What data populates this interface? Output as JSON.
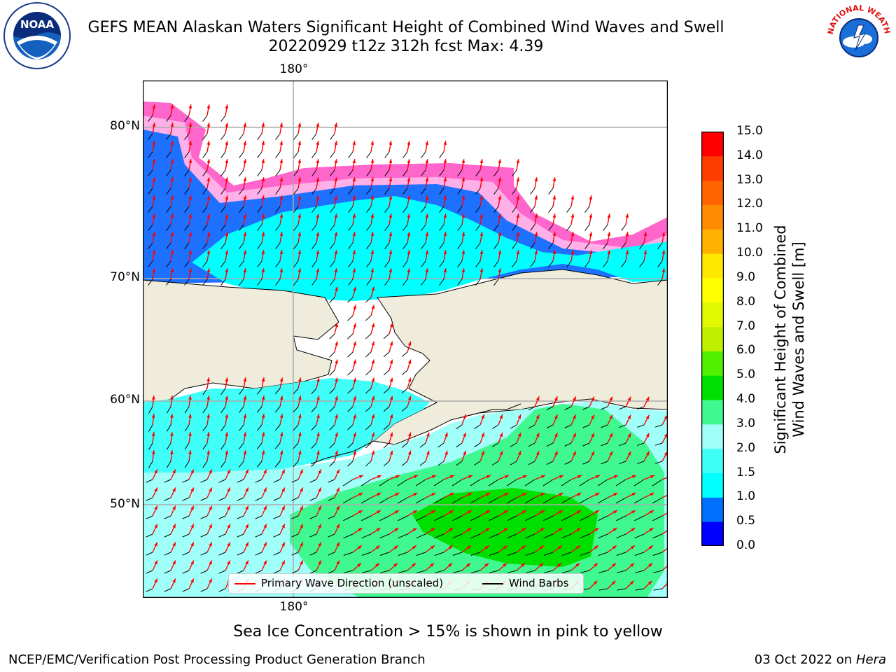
{
  "header": {
    "title_line1": "GEFS MEAN Alaskan Waters Significant Height of Combined Wind Waves and Swell",
    "title_line2": "20220929 t12z 312h fcst   Max: 4.39"
  },
  "logos": {
    "left": {
      "icon": "noaa-logo-icon",
      "text": "NOAA"
    },
    "right": {
      "icon": "nws-logo-icon",
      "text": "NATIONAL WEATHER SERVICE"
    }
  },
  "map": {
    "top_lon_label": "180°",
    "bottom_lon_label": "180°",
    "lat_labels": [
      "80°N",
      "70°N",
      "60°N",
      "50°N"
    ],
    "colors": {
      "land": "#efecdc",
      "grid": "#aaaaaa",
      "wave_arrow": "#ff0000",
      "wind_barb": "#000000"
    }
  },
  "colorbar": {
    "label": "Significant Height of Combined\nWind Waves and Swell [m]",
    "ticks": [
      "0.0",
      "0.5",
      "1.0",
      "1.5",
      "2.0",
      "3.0",
      "4.0",
      "5.0",
      "6.0",
      "7.0",
      "8.0",
      "9.0",
      "10.0",
      "11.0",
      "12.0",
      "13.0",
      "14.0",
      "15.0"
    ],
    "colors": [
      "#0000ff",
      "#0070ff",
      "#00ffff",
      "#40fff8",
      "#a0fff8",
      "#40f890",
      "#00e000",
      "#50f000",
      "#c0f000",
      "#e0f800",
      "#ffff00",
      "#ffe800",
      "#ffb000",
      "#ff8c00",
      "#ff6400",
      "#ff3c00",
      "#ff0000"
    ]
  },
  "legend": {
    "primary_wave": "Primary Wave Direction (unscaled)",
    "wind_barbs": "Wind Barbs"
  },
  "note": "Sea Ice Concentration > 15% is shown in pink to yellow",
  "footer": {
    "left": "NCEP/EMC/Verification Post Processing Product Generation Branch",
    "date": "03 Oct 2022 on ",
    "machine": "Hera"
  }
}
